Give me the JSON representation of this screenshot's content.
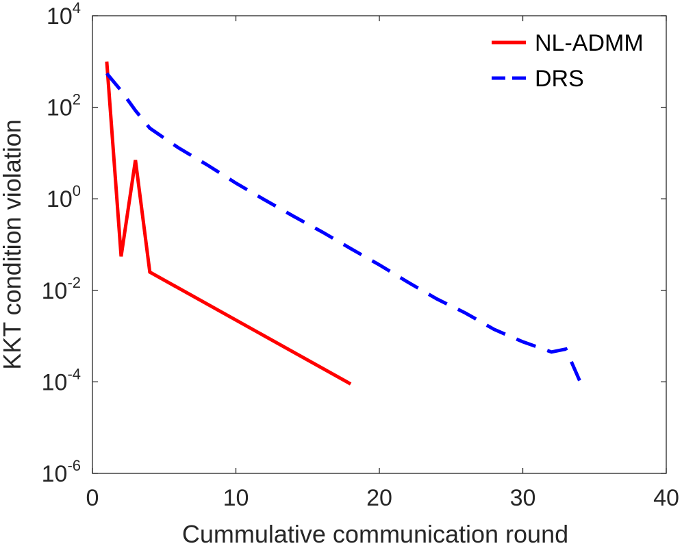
{
  "chart_data": {
    "type": "line",
    "xlabel": "Cummulative communication round",
    "ylabel": "KKT condition violation",
    "xlim": [
      0,
      40
    ],
    "ylim": [
      1e-06,
      10000.0
    ],
    "yscale": "log",
    "xticks": [
      0,
      10,
      20,
      30,
      40
    ],
    "xtick_labels": [
      "0",
      "10",
      "20",
      "30",
      "40"
    ],
    "yticks": [
      1e-06,
      0.0001,
      0.01,
      1,
      100,
      10000
    ],
    "ytick_labels": [
      {
        "base": "10",
        "exp": "-6"
      },
      {
        "base": "10",
        "exp": "-4"
      },
      {
        "base": "10",
        "exp": "-2"
      },
      {
        "base": "10",
        "exp": "0"
      },
      {
        "base": "10",
        "exp": "2"
      },
      {
        "base": "10",
        "exp": "4"
      }
    ],
    "grid": false,
    "legend_position": "top-right",
    "series": [
      {
        "name": "NL-ADMM",
        "color": "#ff0000",
        "style": "solid",
        "x": [
          1,
          2,
          3,
          4,
          18
        ],
        "y": [
          1000,
          0.055,
          7,
          0.025,
          9e-05
        ]
      },
      {
        "name": "DRS",
        "color": "#0000ff",
        "style": "dashed",
        "x": [
          1,
          2,
          3,
          4,
          6,
          8,
          10,
          12,
          14,
          16,
          18,
          20,
          22,
          24,
          26,
          28,
          30,
          32,
          33,
          34
        ],
        "y": [
          550,
          230,
          85,
          35,
          13,
          5.5,
          2.2,
          0.95,
          0.42,
          0.19,
          0.082,
          0.036,
          0.015,
          0.0065,
          0.0032,
          0.0014,
          0.00075,
          0.00045,
          0.00052,
          0.0001
        ]
      }
    ]
  }
}
